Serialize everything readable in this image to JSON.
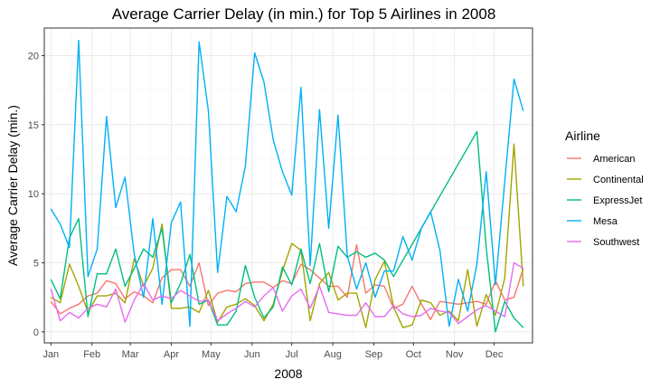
{
  "chart_data": {
    "type": "line",
    "title": "Average Carrier Delay (in min.) for Top 5 Airlines in 2008",
    "xlabel": "2008",
    "ylabel": "Average Carrier Delay (min.)",
    "x_tick_labels": [
      "Jan",
      "Feb",
      "Mar",
      "Apr",
      "May",
      "Jun",
      "Jul",
      "Aug",
      "Sep",
      "Oct",
      "Nov",
      "Dec"
    ],
    "y_ticks": [
      0,
      5,
      10,
      15,
      20
    ],
    "ylim": [
      -0.8,
      22
    ],
    "xlim": [
      -5,
      364
    ],
    "grid": true,
    "legend": {
      "title": "Airline",
      "position": "right"
    },
    "series": [
      {
        "name": "American",
        "color": "#F8766D",
        "x": [
          0,
          7,
          14,
          21,
          28,
          35,
          42,
          49,
          56,
          63,
          70,
          77,
          84,
          91,
          98,
          105,
          112,
          119,
          126,
          133,
          140,
          147,
          154,
          161,
          168,
          175,
          182,
          189,
          196,
          203,
          210,
          217,
          224,
          231,
          238,
          245,
          252,
          259,
          266,
          273,
          280,
          287,
          294,
          301,
          308,
          315,
          322,
          329,
          336,
          343,
          350,
          357
        ],
        "y": [
          2.2,
          1.3,
          1.7,
          2.0,
          2.6,
          2.8,
          3.7,
          3.5,
          2.4,
          2.9,
          2.6,
          2.1,
          3.9,
          4.5,
          4.5,
          3.3,
          5.0,
          1.9,
          2.8,
          3.0,
          2.9,
          3.5,
          3.6,
          3.6,
          3.2,
          3.7,
          3.5,
          4.9,
          4.5,
          3.9,
          3.3,
          3.3,
          2.5,
          6.3,
          2.8,
          3.4,
          3.3,
          1.7,
          2.0,
          3.3,
          2.0,
          0.9,
          2.2,
          2.1,
          2.0,
          2.1,
          2.2,
          2.0,
          3.7,
          2.3,
          2.5,
          4.6
        ]
      },
      {
        "name": "Continental",
        "color": "#A3A500",
        "x": [
          0,
          7,
          14,
          21,
          28,
          35,
          42,
          49,
          56,
          63,
          70,
          77,
          84,
          91,
          98,
          105,
          112,
          119,
          126,
          133,
          140,
          147,
          154,
          161,
          168,
          175,
          182,
          189,
          196,
          203,
          210,
          217,
          224,
          231,
          238,
          245,
          252,
          259,
          266,
          273,
          280,
          287,
          294,
          301,
          308,
          315,
          322,
          329,
          336,
          343,
          350,
          357
        ],
        "y": [
          2.5,
          2.1,
          4.9,
          3.3,
          1.4,
          2.6,
          2.6,
          2.8,
          2.1,
          5.3,
          3.3,
          4.6,
          7.8,
          1.7,
          1.7,
          1.8,
          1.4,
          3.0,
          0.7,
          1.8,
          2.0,
          2.4,
          1.9,
          0.8,
          2.0,
          4.4,
          6.4,
          5.9,
          0.8,
          3.5,
          4.3,
          2.3,
          2.8,
          2.8,
          0.3,
          3.8,
          5.1,
          1.8,
          0.3,
          0.5,
          2.3,
          2.1,
          1.2,
          1.5,
          0.8,
          4.5,
          0.4,
          2.7,
          1.2,
          3.9,
          13.6,
          3.3
        ]
      },
      {
        "name": "ExpressJet",
        "color": "#00BF7D",
        "x": [
          0,
          7,
          14,
          21,
          28,
          35,
          42,
          49,
          56,
          63,
          70,
          77,
          84,
          91,
          98,
          105,
          112,
          119,
          126,
          133,
          140,
          147,
          154,
          161,
          168,
          175,
          182,
          189,
          196,
          203,
          210,
          217,
          224,
          231,
          238,
          245,
          252,
          259,
          322,
          329,
          336,
          343,
          350,
          357
        ],
        "y": [
          3.8,
          2.4,
          6.8,
          8.2,
          1.1,
          4.2,
          4.2,
          6.0,
          3.3,
          4.6,
          6.0,
          5.4,
          7.5,
          2.1,
          3.5,
          5.6,
          2.0,
          2.3,
          0.5,
          0.5,
          1.5,
          4.8,
          2.5,
          1.0,
          1.8,
          4.7,
          3.4,
          6.0,
          3.5,
          6.4,
          2.9,
          6.2,
          5.4,
          5.8,
          5.4,
          5.7,
          5.2,
          4.0,
          14.5,
          6.1,
          0.0,
          2.2,
          1.0,
          0.3
        ]
      },
      {
        "name": "Mesa",
        "color": "#00B0F6",
        "x": [
          0,
          7,
          14,
          21,
          28,
          35,
          42,
          49,
          56,
          63,
          70,
          77,
          84,
          91,
          98,
          105,
          112,
          119,
          126,
          133,
          140,
          147,
          154,
          161,
          168,
          175,
          182,
          189,
          196,
          203,
          210,
          217,
          224,
          231,
          238,
          245,
          252,
          259,
          266,
          273,
          280,
          287,
          294,
          301,
          308,
          315,
          322,
          329,
          336,
          343,
          350,
          357
        ],
        "y": [
          8.9,
          7.8,
          6.1,
          21.1,
          4.0,
          6.0,
          15.6,
          9.0,
          11.2,
          5.6,
          2.5,
          8.2,
          2.0,
          7.9,
          9.4,
          0.4,
          21.0,
          16.0,
          4.3,
          9.8,
          8.7,
          12.0,
          20.2,
          18.1,
          13.9,
          11.6,
          9.9,
          17.7,
          4.8,
          16.1,
          7.5,
          15.7,
          5.5,
          3.1,
          5.0,
          2.5,
          4.4,
          4.4,
          6.9,
          5.2,
          7.5,
          8.7,
          5.9,
          0.4,
          3.8,
          1.5,
          4.9,
          11.6,
          3.4,
          10.9,
          18.3,
          16.0
        ]
      },
      {
        "name": "Southwest",
        "color": "#E76BF3",
        "x": [
          0,
          7,
          14,
          21,
          28,
          35,
          42,
          49,
          56,
          63,
          70,
          77,
          84,
          91,
          98,
          105,
          112,
          119,
          126,
          133,
          140,
          147,
          154,
          161,
          168,
          175,
          182,
          189,
          196,
          203,
          210,
          217,
          224,
          231,
          238,
          245,
          252,
          259,
          266,
          273,
          280,
          287,
          294,
          301,
          308,
          315,
          322,
          329,
          336,
          343,
          350,
          357
        ],
        "y": [
          3.1,
          0.8,
          1.4,
          1.0,
          1.7,
          2.0,
          1.8,
          3.1,
          0.7,
          2.3,
          3.5,
          2.3,
          2.6,
          2.4,
          3.0,
          2.6,
          2.2,
          2.3,
          0.8,
          1.3,
          1.7,
          2.2,
          1.8,
          2.6,
          3.2,
          1.5,
          2.6,
          3.1,
          1.7,
          3.3,
          1.4,
          1.3,
          1.2,
          1.2,
          2.1,
          1.1,
          1.1,
          1.9,
          1.3,
          1.1,
          1.2,
          1.7,
          1.5,
          1.4,
          0.6,
          1.1,
          1.6,
          1.9,
          1.5,
          1.1,
          5.0,
          4.6
        ]
      }
    ]
  }
}
